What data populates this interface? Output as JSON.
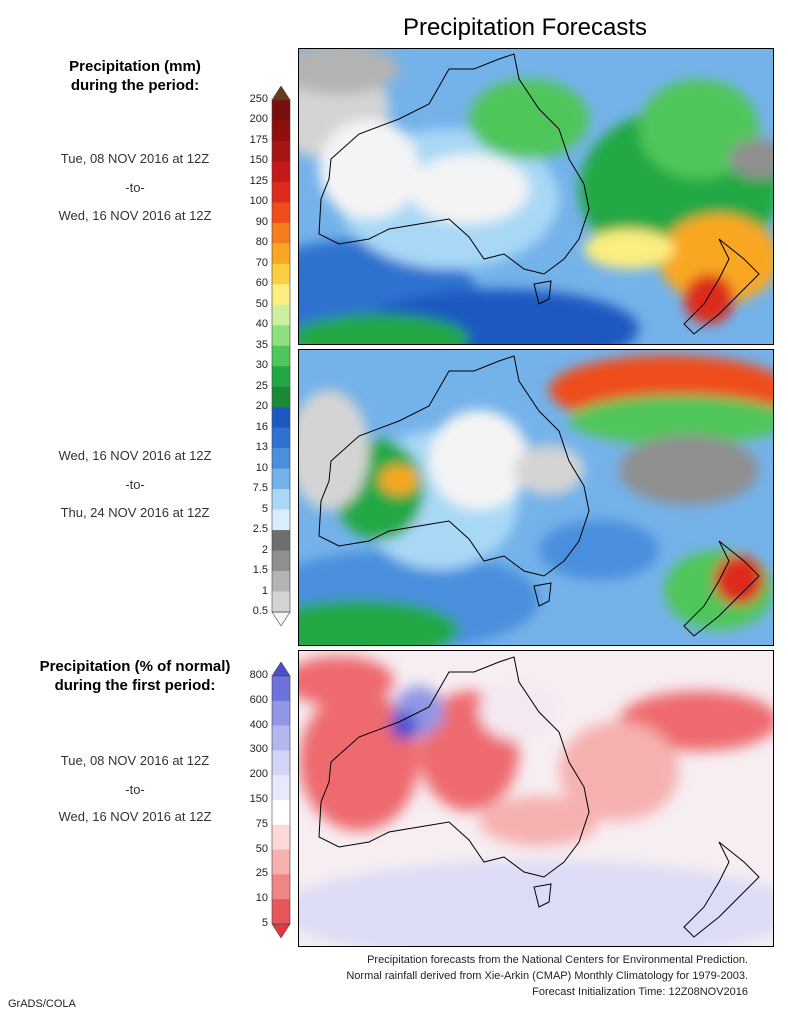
{
  "title": "Precipitation Forecasts",
  "section1": {
    "heading_line1": "Precipitation (mm)",
    "heading_line2": "during the period:",
    "colorbar_labels": [
      "250",
      "200",
      "175",
      "150",
      "125",
      "100",
      "90",
      "80",
      "70",
      "60",
      "50",
      "40",
      "35",
      "30",
      "25",
      "20",
      "16",
      "13",
      "10",
      "7.5",
      "5",
      "2.5",
      "2",
      "1.5",
      "1",
      "0.5"
    ],
    "colorbar_colors": [
      "#6b3a1f",
      "#7a0d0d",
      "#8f0f0f",
      "#a81515",
      "#c41a1a",
      "#dd2b1e",
      "#ef4d1c",
      "#f57d1e",
      "#f9a723",
      "#fbcf44",
      "#fcee80",
      "#cdf0a0",
      "#8de07f",
      "#4fc65a",
      "#22a844",
      "#1a8a38",
      "#1f58c0",
      "#2f72d0",
      "#4a8fdd",
      "#74b2ea",
      "#a9d8f6",
      "#d8eefb",
      "#6e6e6e",
      "#8f8f8f",
      "#b3b3b3",
      "#d4d4d4",
      "#f4f4f4"
    ],
    "period1": {
      "start": "Tue, 08 NOV 2016 at 12Z",
      "sep": "-to-",
      "end": "Wed, 16 NOV 2016 at 12Z"
    },
    "period2": {
      "start": "Wed, 16 NOV 2016 at 12Z",
      "sep": "-to-",
      "end": "Thu, 24 NOV 2016 at 12Z"
    }
  },
  "section2": {
    "heading_line1": "Precipitation (% of normal)",
    "heading_line2": "during the first period:",
    "colorbar_labels": [
      "800",
      "600",
      "400",
      "300",
      "200",
      "150",
      "75",
      "50",
      "25",
      "10",
      "5"
    ],
    "colorbar_colors": [
      "#4a4fcf",
      "#6d72dc",
      "#9196e6",
      "#b3b6ef",
      "#d2d4f6",
      "#e8e9fb",
      "#ffffff",
      "#fbd9d9",
      "#f6b0b0",
      "#f08585",
      "#e8565a",
      "#e03a3e"
    ],
    "period": {
      "start": "Tue, 08 NOV 2016 at 12Z",
      "sep": "-to-",
      "end": "Wed, 16 NOV 2016 at 12Z"
    }
  },
  "footer": {
    "line1": "Precipitation forecasts from the National Centers for Environmental Prediction.",
    "line2": "Normal rainfall derived from Xie-Arkin (CMAP) Monthly Climatology for 1979-2003.",
    "line3": "Forecast Initialization Time: 12Z08NOV2016"
  },
  "credit": "GrADS/COLA"
}
